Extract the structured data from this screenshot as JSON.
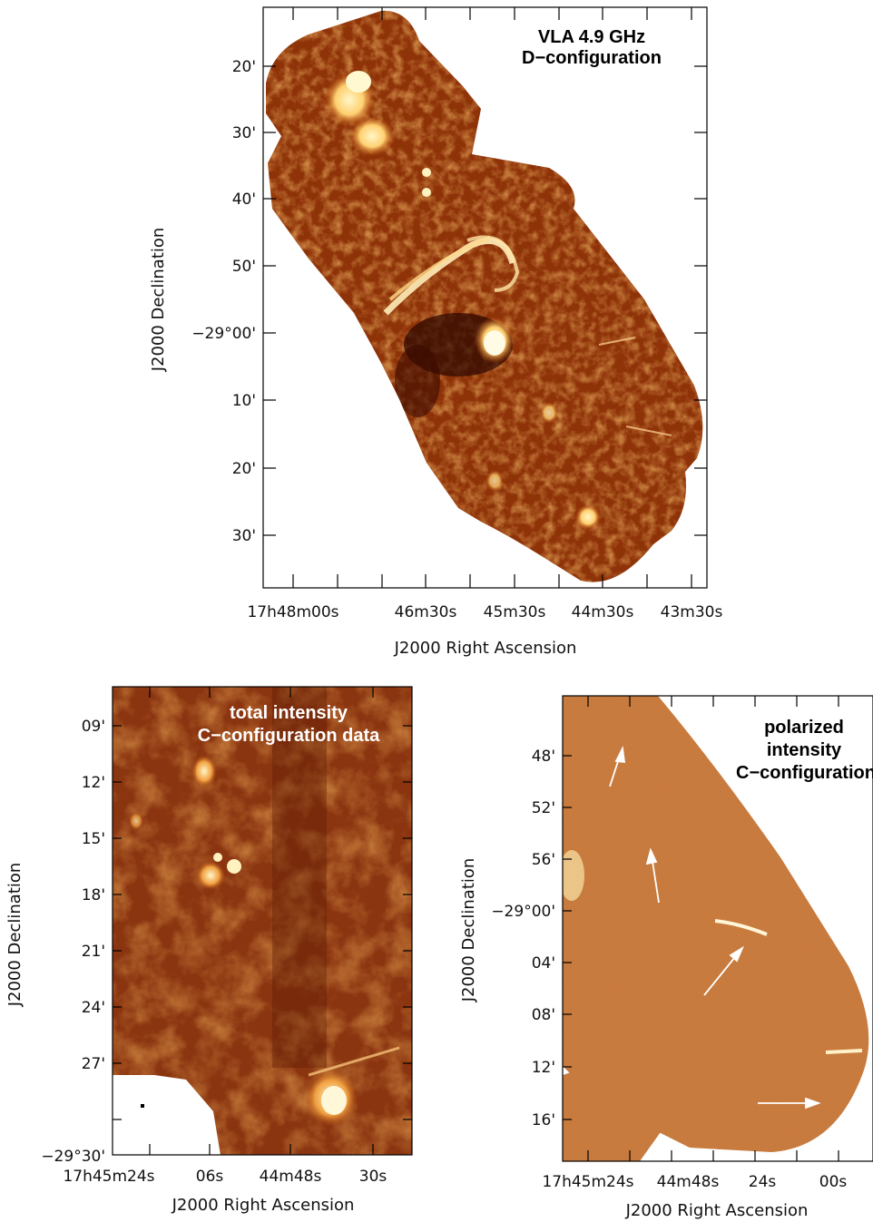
{
  "panel_top": {
    "annotation": [
      "VLA 4.9 GHz",
      "D−configuration"
    ],
    "ylabel": "J2000 Declination",
    "xlabel": "J2000 Right Ascension",
    "y_ticks": [
      "20'",
      "30'",
      "40'",
      "50'",
      "−29°00'",
      "10'",
      "20'",
      "30'"
    ],
    "x_ticks": [
      "17h48m00s",
      "46m30s",
      "45m30s",
      "44m30s",
      "43m30s"
    ]
  },
  "panel_left": {
    "annotation": [
      "total intensity",
      "C−configuration data"
    ],
    "ylabel": "J2000 Declination",
    "xlabel": "J2000 Right Ascension",
    "y_ticks": [
      "09'",
      "12'",
      "15'",
      "18'",
      "21'",
      "24'",
      "27'",
      "−29°30'"
    ],
    "x_ticks": [
      "17h45m24s",
      "06s",
      "44m48s",
      "30s"
    ]
  },
  "panel_right": {
    "annotation": [
      "polarized",
      "intensity",
      "C−configuration"
    ],
    "ylabel": "J2000 Declination",
    "xlabel": "J2000 Right Ascension",
    "y_ticks": [
      "48'",
      "52'",
      "56'",
      "−29°00'",
      "04'",
      "08'",
      "12'",
      "16'"
    ],
    "x_ticks": [
      "17h45m24s",
      "44m48s",
      "24s",
      "00s"
    ]
  },
  "colors": {
    "map_dark": "#3a0a00",
    "map_mid": "#9a3a0a",
    "map_bright": "#ffe8a0",
    "pol_base": "#b85a20"
  }
}
